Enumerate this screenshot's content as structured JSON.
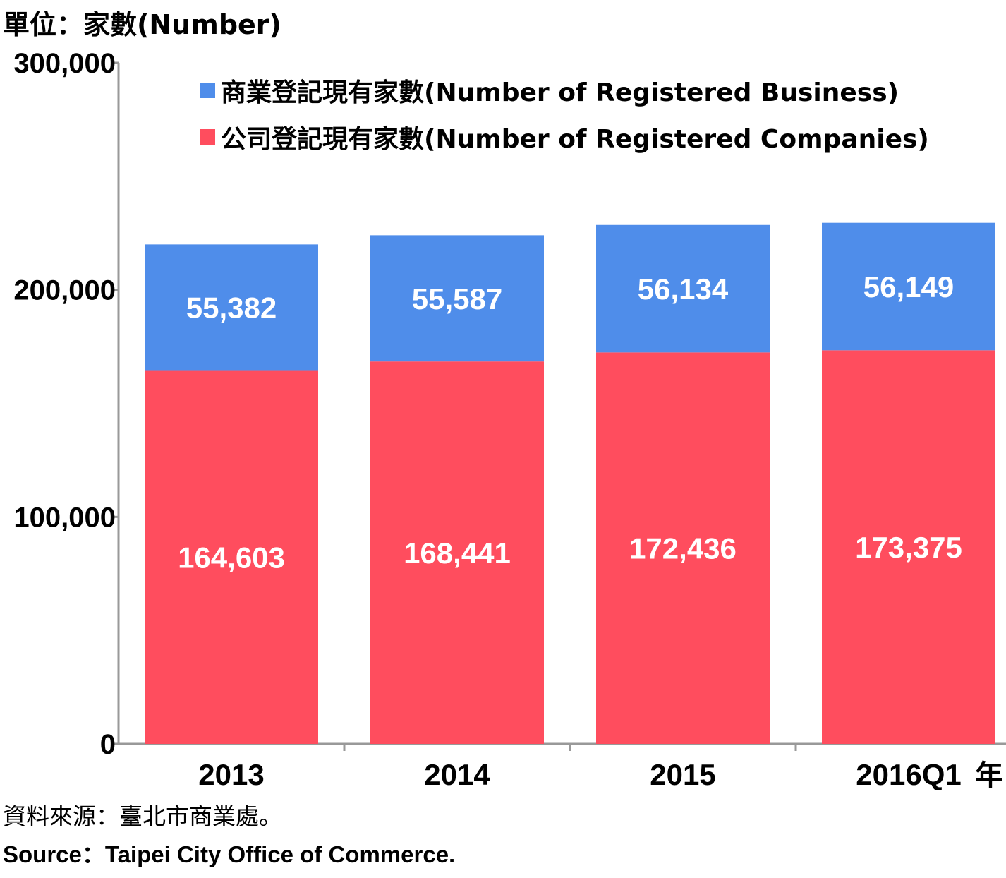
{
  "unit_label": "單位：家數(Number)",
  "source_zh": "資料來源：臺北市商業處。",
  "source_en": "Source：Taipei City Office of Commerce.",
  "x_unit_suffix": "年",
  "colors": {
    "business": "#4f8dea",
    "companies": "#ff4d5e",
    "axis": "#999999",
    "label_text": "#ffffff"
  },
  "chart_data": {
    "type": "bar",
    "stacked": true,
    "categories": [
      "2013",
      "2014",
      "2015",
      "2016Q1"
    ],
    "series": [
      {
        "name": "公司登記現有家數(Number of Registered Companies)",
        "values": [
          164603,
          168441,
          172436,
          173375
        ],
        "color": "#ff4d5e"
      },
      {
        "name": "商業登記現有家數(Number of Registered Business)",
        "values": [
          55382,
          55587,
          56134,
          56149
        ],
        "color": "#4f8dea"
      }
    ],
    "y_ticks": [
      "0",
      "100,000",
      "200,000",
      "300,000"
    ],
    "y_tick_values": [
      0,
      100000,
      200000,
      300000
    ],
    "data_labels": [
      [
        "164,603",
        "168,441",
        "172,436",
        "173,375"
      ],
      [
        "55,382",
        "55,587",
        "56,134",
        "56,149"
      ]
    ],
    "ylim": [
      0,
      300000
    ],
    "grid": false,
    "legend_position": "top"
  }
}
